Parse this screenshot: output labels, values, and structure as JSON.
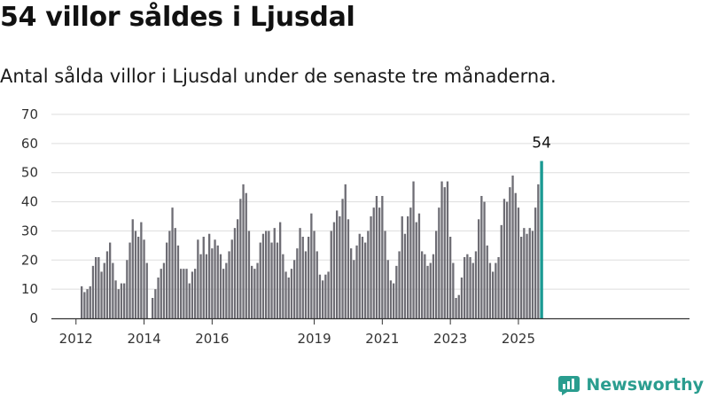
{
  "header": {
    "title": "54 villor såldes i Ljusdal",
    "subtitle": "Antal sålda villor i Ljusdal under de senaste tre månaderna."
  },
  "brand": {
    "name": "Newsworthy",
    "icon": "newsworthy-logo-icon",
    "color": "#2a9d8f"
  },
  "colors": {
    "bar": "#6e6d74",
    "highlight": "#1b9a93",
    "grid": "#dddddd",
    "axis": "#333333"
  },
  "chart_data": {
    "type": "bar",
    "title": "54 villor såldes i Ljusdal",
    "subtitle": "Antal sålda villor i Ljusdal under de senaste tre månaderna.",
    "x_start": "2012-03",
    "x_tick_labels": [
      "2012",
      "2014",
      "2016",
      "2019",
      "2021",
      "2023",
      "2025"
    ],
    "ylim": [
      0,
      70
    ],
    "y_ticks": [
      0,
      10,
      20,
      30,
      40,
      50,
      60,
      70
    ],
    "grid": true,
    "legend": "none",
    "values": [
      11,
      9,
      10,
      11,
      18,
      21,
      21,
      16,
      19,
      23,
      26,
      19,
      13,
      10,
      12,
      12,
      20,
      26,
      34,
      30,
      28,
      33,
      27,
      19,
      null,
      7,
      10,
      14,
      17,
      19,
      26,
      30,
      38,
      31,
      25,
      17,
      17,
      17,
      12,
      16,
      17,
      27,
      22,
      28,
      22,
      29,
      24,
      27,
      25,
      22,
      17,
      19,
      23,
      27,
      31,
      34,
      41,
      46,
      43,
      30,
      18,
      17,
      19,
      26,
      29,
      30,
      30,
      26,
      31,
      26,
      33,
      22,
      16,
      14,
      17,
      20,
      24,
      31,
      28,
      23,
      28,
      36,
      30,
      23,
      15,
      13,
      15,
      16,
      30,
      33,
      37,
      35,
      41,
      46,
      34,
      24,
      20,
      25,
      29,
      28,
      26,
      30,
      35,
      38,
      42,
      38,
      42,
      30,
      20,
      13,
      12,
      18,
      23,
      35,
      29,
      35,
      38,
      47,
      33,
      36,
      23,
      22,
      18,
      19,
      22,
      30,
      38,
      47,
      45,
      47,
      28,
      19,
      7,
      8,
      14,
      21,
      22,
      21,
      19,
      23,
      34,
      42,
      40,
      25,
      19,
      16,
      19,
      21,
      32,
      41,
      40,
      45,
      49,
      43,
      38,
      28,
      31,
      29,
      31,
      30,
      38,
      46,
      54
    ],
    "highlight": {
      "value": 54,
      "label": "54"
    }
  }
}
